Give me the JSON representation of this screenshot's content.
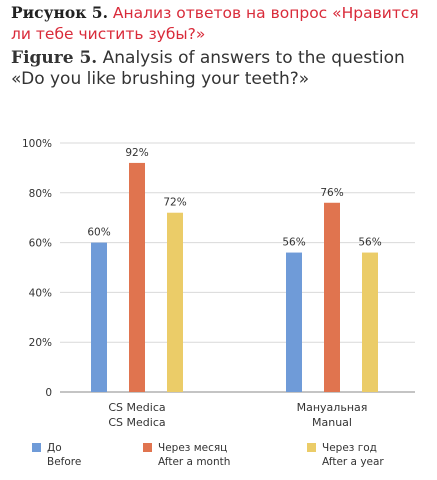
{
  "header": {
    "ru_lead": "Рисунок 5.",
    "ru_title": "Анализ ответов на вопрос «Нравится ли тебе чистить зубы?»",
    "en_lead": "Figure 5.",
    "en_title": "Analysis of answers to the question «Do you like brushing your teeth?»"
  },
  "colors": {
    "before": "#6f9bd8",
    "month": "#e0744f",
    "year": "#ebcc68",
    "title_accent": "#d92b3a",
    "grid": "#d9d9d9"
  },
  "chart_data": {
    "type": "bar",
    "categories": [
      {
        "line1": "CS Medica",
        "line2": "CS Medica"
      },
      {
        "line1": "Мануальная",
        "line2": "Manual"
      }
    ],
    "series": [
      {
        "name_ru": "До",
        "name_en": "Before",
        "values": [
          60,
          56
        ],
        "labels": [
          "60%",
          "56%"
        ]
      },
      {
        "name_ru": "Через месяц",
        "name_en": "After a month",
        "values": [
          92,
          76
        ],
        "labels": [
          "92%",
          "76%"
        ]
      },
      {
        "name_ru": "Через год",
        "name_en": "After a year",
        "values": [
          72,
          56
        ],
        "labels": [
          "72%",
          "56%"
        ]
      }
    ],
    "yticks": [
      "0",
      "20%",
      "40%",
      "60%",
      "80%",
      "100%"
    ],
    "ylim": [
      0,
      100
    ],
    "grid": true,
    "legend_position": "bottom"
  }
}
